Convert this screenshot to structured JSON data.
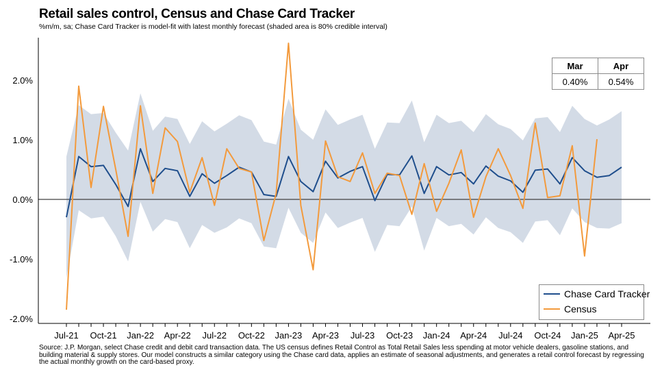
{
  "title": "Retail sales control, Census and Chase Card Tracker",
  "subtitle": "%m/m, sa; Chase Card Tracker is model-fit with latest monthly forecast (shaded area is 80% credible interval)",
  "source": "Source: J.P. Morgan, select Chase credit and debit card transaction data. The US census defines Retail Control as Total Retail Sales less spending at motor vehicle dealers, gasoline stations, and building material & supply stores. Our model constructs a similar category using the Chase card data, applies an estimate of seasonal adjustments, and generates a retail control forecast by regressing the actual monthly growth on the card-based proxy.",
  "forecast_table": {
    "headers": [
      "Mar",
      "Apr"
    ],
    "values": [
      "0.40%",
      "0.54%"
    ]
  },
  "legend": [
    {
      "label": "Chase Card Tracker",
      "color": "#1f4e8c"
    },
    {
      "label": "Census",
      "color": "#f39a3c"
    }
  ],
  "colors": {
    "band": "#d3dbe6",
    "zero_line": "#404040"
  },
  "chart_data": {
    "type": "line",
    "x": [
      "Jul-21",
      "Aug-21",
      "Sep-21",
      "Oct-21",
      "Nov-21",
      "Dec-21",
      "Jan-22",
      "Feb-22",
      "Mar-22",
      "Apr-22",
      "May-22",
      "Jun-22",
      "Jul-22",
      "Aug-22",
      "Sep-22",
      "Oct-22",
      "Nov-22",
      "Dec-22",
      "Jan-23",
      "Feb-23",
      "Mar-23",
      "Apr-23",
      "May-23",
      "Jun-23",
      "Jul-23",
      "Aug-23",
      "Sep-23",
      "Oct-23",
      "Nov-23",
      "Dec-23",
      "Jan-24",
      "Feb-24",
      "Mar-24",
      "Apr-24",
      "May-24",
      "Jun-24",
      "Jul-24",
      "Aug-24",
      "Sep-24",
      "Oct-24",
      "Nov-24",
      "Dec-24",
      "Jan-25",
      "Feb-25",
      "Mar-25",
      "Apr-25"
    ],
    "x_tick_labels": [
      "Jul-21",
      "Oct-21",
      "Jan-22",
      "Apr-22",
      "Jul-22",
      "Oct-22",
      "Jan-23",
      "Apr-23",
      "Jul-23",
      "Oct-23",
      "Jan-24",
      "Apr-24",
      "Jul-24",
      "Oct-24",
      "Jan-25",
      "Apr-25"
    ],
    "y_tick_labels": [
      "2.0%",
      "1.0%",
      "0.0%",
      "-1.0%",
      "-2.0%"
    ],
    "y_ticks": [
      2.0,
      1.0,
      0.0,
      -1.0,
      -2.0
    ],
    "ylim": [
      -2.0,
      2.0
    ],
    "series": [
      {
        "name": "Chase Card Tracker",
        "values": [
          -0.3,
          0.72,
          0.55,
          0.57,
          0.25,
          -0.12,
          0.85,
          0.3,
          0.52,
          0.48,
          0.05,
          0.43,
          0.27,
          0.4,
          0.54,
          0.46,
          0.08,
          0.05,
          0.72,
          0.3,
          0.13,
          0.64,
          0.36,
          0.47,
          0.55,
          -0.02,
          0.42,
          0.41,
          0.73,
          0.1,
          0.55,
          0.41,
          0.45,
          0.26,
          0.56,
          0.39,
          0.31,
          0.12,
          0.49,
          0.51,
          0.26,
          0.7,
          0.48,
          0.37,
          0.4,
          0.54
        ]
      },
      {
        "name": "Census",
        "values": [
          -1.85,
          1.9,
          0.2,
          1.56,
          0.5,
          -0.62,
          1.57,
          0.1,
          1.2,
          0.97,
          0.12,
          0.7,
          -0.1,
          0.85,
          0.52,
          0.46,
          -0.69,
          0.1,
          2.62,
          -0.1,
          -1.18,
          0.98,
          0.38,
          0.3,
          0.78,
          0.1,
          0.44,
          0.4,
          -0.25,
          0.6,
          -0.2,
          0.27,
          0.83,
          -0.3,
          0.38,
          0.85,
          0.4,
          -0.15,
          1.28,
          0.03,
          0.06,
          0.9,
          -0.95,
          1.01,
          null,
          null
        ]
      }
    ],
    "band_80pct": {
      "upper": [
        0.72,
        1.58,
        1.43,
        1.45,
        1.12,
        0.82,
        1.78,
        1.15,
        1.39,
        1.35,
        0.93,
        1.31,
        1.14,
        1.27,
        1.41,
        1.33,
        0.97,
        0.92,
        1.69,
        1.17,
        1.0,
        1.51,
        1.25,
        1.34,
        1.42,
        0.85,
        1.29,
        1.28,
        1.66,
        0.96,
        1.42,
        1.28,
        1.32,
        1.13,
        1.43,
        1.26,
        1.18,
        0.99,
        1.36,
        1.38,
        1.13,
        1.57,
        1.35,
        1.24,
        1.34,
        1.48
      ],
      "lower": [
        -1.32,
        -0.18,
        -0.32,
        -0.29,
        -0.62,
        -1.04,
        -0.04,
        -0.54,
        -0.33,
        -0.38,
        -0.82,
        -0.43,
        -0.56,
        -0.47,
        -0.32,
        -0.4,
        -0.79,
        -0.82,
        -0.14,
        -0.56,
        -0.73,
        -0.22,
        -0.48,
        -0.39,
        -0.31,
        -0.88,
        -0.43,
        -0.45,
        -0.12,
        -0.86,
        -0.31,
        -0.45,
        -0.41,
        -0.59,
        -0.3,
        -0.48,
        -0.55,
        -0.73,
        -0.37,
        -0.35,
        -0.6,
        -0.15,
        -0.38,
        -0.48,
        -0.49,
        -0.4
      ]
    }
  }
}
